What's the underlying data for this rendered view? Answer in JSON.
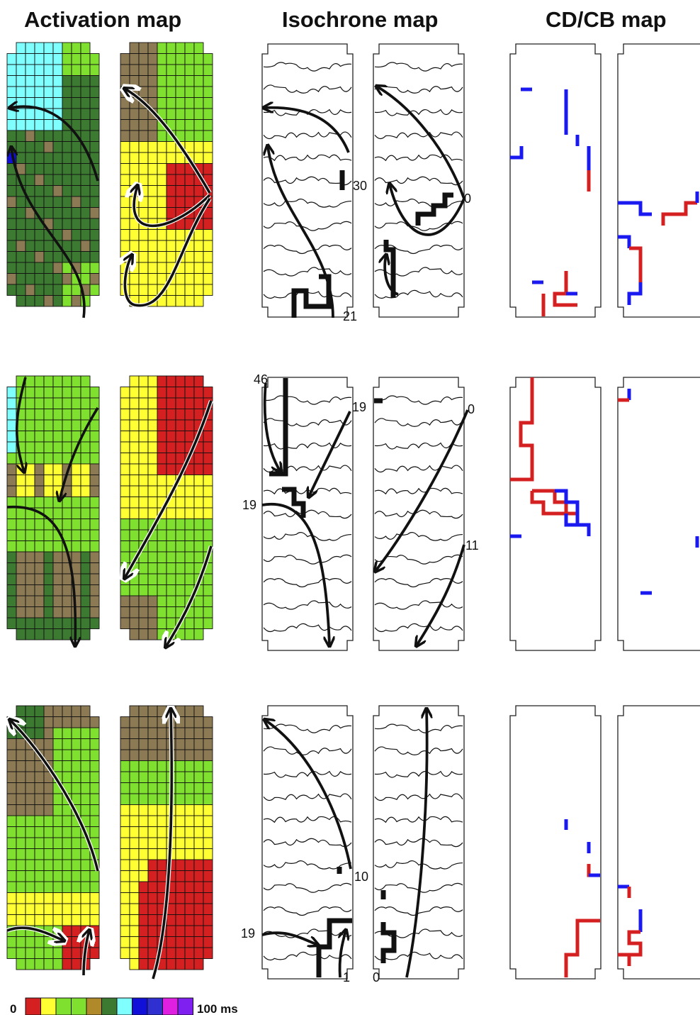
{
  "titles": {
    "activation": "Activation map",
    "isochrone": "Isochrone map",
    "cdcb": "CD/CB map"
  },
  "colors": {
    "red": "#d42020",
    "yellow": "#ffff33",
    "lightgreen": "#80e030",
    "olive": "#8c7a55",
    "darkgreen": "#3c7a32",
    "cyan": "#80ffff",
    "blue": "#1010d8",
    "cd_red": "#d42020",
    "cb_blue": "#1a1af0"
  },
  "legend": {
    "min_label": "0",
    "max_label": "100 ms",
    "swatches": [
      "#d42020",
      "#ffff33",
      "#80e030",
      "#80e030",
      "#b08a2a",
      "#3c7a32",
      "#80ffff",
      "#1010d8",
      "#3030d0",
      "#e020e0",
      "#8020f0"
    ]
  },
  "isochrone_labels": {
    "r1a": [
      "30",
      "21"
    ],
    "r1b": [
      "0"
    ],
    "r2a": [
      "46",
      "19",
      "19"
    ],
    "r2b": [
      "0",
      "11"
    ],
    "r3a": [
      "10",
      "19",
      "1"
    ],
    "r3b": [
      "0"
    ]
  }
}
